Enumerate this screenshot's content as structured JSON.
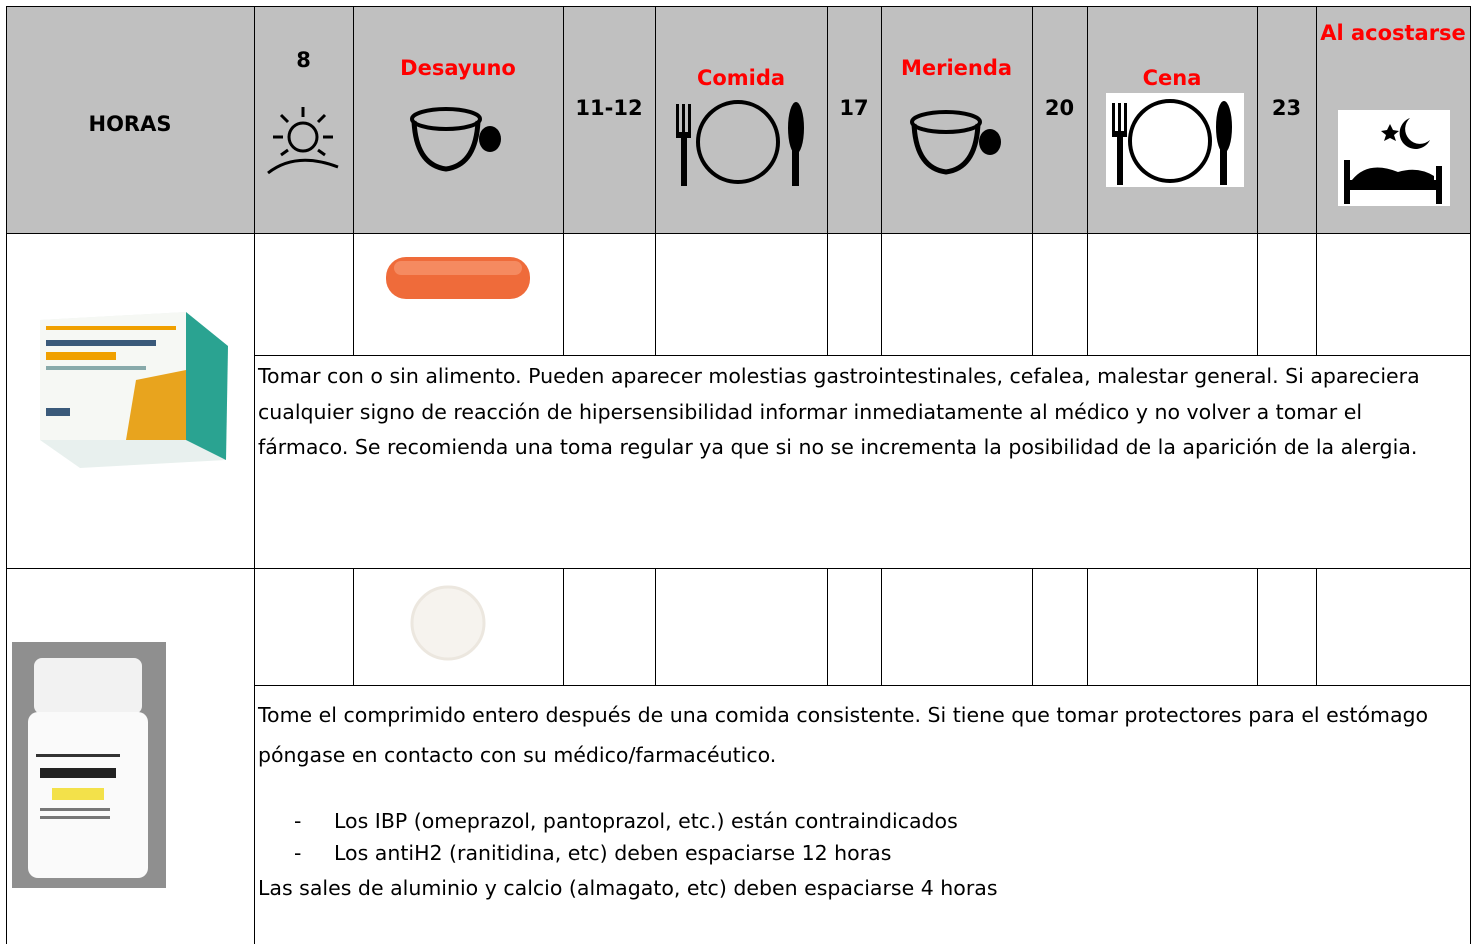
{
  "header": {
    "label": "HORAS",
    "columns": [
      "8",
      "Desayuno",
      "11-12",
      "Comida",
      "17",
      "Merienda",
      "20",
      "Cena",
      "23",
      "Al acostarse"
    ]
  },
  "medications": [
    {
      "instructions": "Tomar con o sin alimento. Pueden aparecer molestias gastrointestinales, cefalea, malestar general. Si apareciera cualquier signo de reacción de hipersensibilidad informar inmediatamente al médico y no volver a tomar el fármaco. Se recomienda una toma regular ya que si no se incrementa la posibilidad de la aparición de la alergia."
    },
    {
      "instructions": "Tome el comprimido entero después de una comida consistente. Si tiene que tomar protectores para el estómago póngase en contacto con su médico/farmacéutico.",
      "list": [
        "Los IBP (omeprazol, pantoprazol, etc.) están contraindicados",
        "Los antiH2 (ranitidina, etc) deben espaciarse 12 horas"
      ],
      "note": "Las sales de aluminio y calcio (almagato, etc) deben espaciarse 4 horas"
    }
  ]
}
